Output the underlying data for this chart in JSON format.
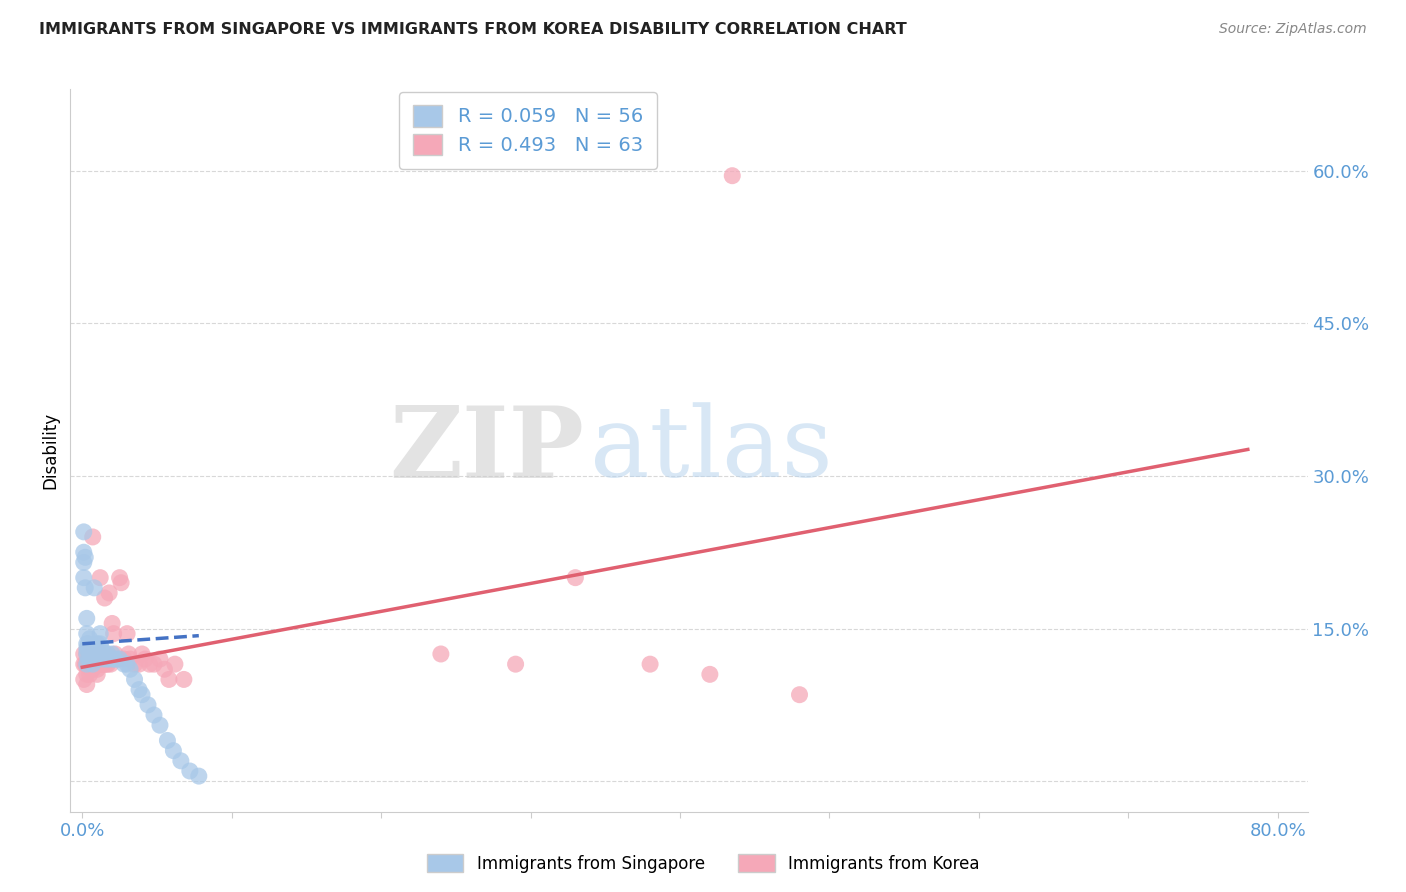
{
  "title": "IMMIGRANTS FROM SINGAPORE VS IMMIGRANTS FROM KOREA DISABILITY CORRELATION CHART",
  "source": "Source: ZipAtlas.com",
  "tick_color": "#5b9bd5",
  "ylabel": "Disability",
  "xlim": [
    -0.008,
    0.82
  ],
  "ylim": [
    -0.03,
    0.68
  ],
  "xticks": [
    0.0,
    0.1,
    0.2,
    0.3,
    0.4,
    0.5,
    0.6,
    0.7,
    0.8
  ],
  "yticks": [
    0.0,
    0.15,
    0.3,
    0.45,
    0.6
  ],
  "background_color": "#ffffff",
  "grid_color": "#d8d8d8",
  "singapore_color": "#a8c8e8",
  "korea_color": "#f5a8b8",
  "singapore_line_color": "#4472c4",
  "korea_line_color": "#e06070",
  "legend_R1": "R = 0.059",
  "legend_N1": "N = 56",
  "legend_R2": "R = 0.493",
  "legend_N2": "N = 63",
  "legend_label1": "Immigrants from Singapore",
  "legend_label2": "Immigrants from Korea",
  "sg_x": [
    0.001,
    0.001,
    0.001,
    0.001,
    0.002,
    0.002,
    0.003,
    0.003,
    0.003,
    0.003,
    0.003,
    0.003,
    0.004,
    0.004,
    0.004,
    0.005,
    0.005,
    0.005,
    0.006,
    0.006,
    0.007,
    0.007,
    0.007,
    0.008,
    0.009,
    0.01,
    0.01,
    0.01,
    0.011,
    0.012,
    0.012,
    0.013,
    0.013,
    0.014,
    0.015,
    0.016,
    0.017,
    0.018,
    0.02,
    0.021,
    0.022,
    0.025,
    0.028,
    0.03,
    0.032,
    0.035,
    0.038,
    0.04,
    0.044,
    0.048,
    0.052,
    0.057,
    0.061,
    0.066,
    0.072,
    0.078
  ],
  "sg_y": [
    0.245,
    0.225,
    0.215,
    0.2,
    0.22,
    0.19,
    0.16,
    0.145,
    0.135,
    0.13,
    0.125,
    0.115,
    0.135,
    0.13,
    0.12,
    0.14,
    0.13,
    0.12,
    0.13,
    0.12,
    0.13,
    0.125,
    0.115,
    0.19,
    0.12,
    0.135,
    0.13,
    0.12,
    0.125,
    0.145,
    0.135,
    0.13,
    0.125,
    0.12,
    0.125,
    0.12,
    0.125,
    0.12,
    0.125,
    0.12,
    0.12,
    0.12,
    0.115,
    0.115,
    0.11,
    0.1,
    0.09,
    0.085,
    0.075,
    0.065,
    0.055,
    0.04,
    0.03,
    0.02,
    0.01,
    0.005
  ],
  "kr_x": [
    0.001,
    0.001,
    0.001,
    0.002,
    0.003,
    0.003,
    0.003,
    0.003,
    0.004,
    0.005,
    0.005,
    0.005,
    0.006,
    0.006,
    0.007,
    0.007,
    0.007,
    0.008,
    0.009,
    0.01,
    0.01,
    0.01,
    0.011,
    0.012,
    0.012,
    0.013,
    0.014,
    0.015,
    0.015,
    0.015,
    0.016,
    0.017,
    0.018,
    0.018,
    0.019,
    0.02,
    0.021,
    0.022,
    0.024,
    0.025,
    0.026,
    0.028,
    0.03,
    0.031,
    0.032,
    0.035,
    0.038,
    0.04,
    0.042,
    0.045,
    0.048,
    0.052,
    0.055,
    0.058,
    0.062,
    0.068,
    0.24,
    0.29,
    0.33,
    0.38,
    0.42,
    0.48,
    0.435
  ],
  "kr_y": [
    0.125,
    0.115,
    0.1,
    0.115,
    0.125,
    0.115,
    0.105,
    0.095,
    0.115,
    0.125,
    0.115,
    0.105,
    0.115,
    0.11,
    0.24,
    0.115,
    0.11,
    0.115,
    0.115,
    0.115,
    0.11,
    0.105,
    0.115,
    0.2,
    0.125,
    0.115,
    0.115,
    0.18,
    0.12,
    0.115,
    0.115,
    0.115,
    0.185,
    0.12,
    0.115,
    0.155,
    0.145,
    0.125,
    0.12,
    0.2,
    0.195,
    0.12,
    0.145,
    0.125,
    0.12,
    0.115,
    0.115,
    0.125,
    0.12,
    0.115,
    0.115,
    0.12,
    0.11,
    0.1,
    0.115,
    0.1,
    0.125,
    0.115,
    0.2,
    0.115,
    0.105,
    0.085,
    0.595
  ],
  "sg_trend_x": [
    0.0,
    0.078
  ],
  "sg_trend_y": [
    0.135,
    0.143
  ],
  "kr_trend_x": [
    0.0,
    0.78
  ],
  "kr_trend_y": [
    0.112,
    0.326
  ]
}
